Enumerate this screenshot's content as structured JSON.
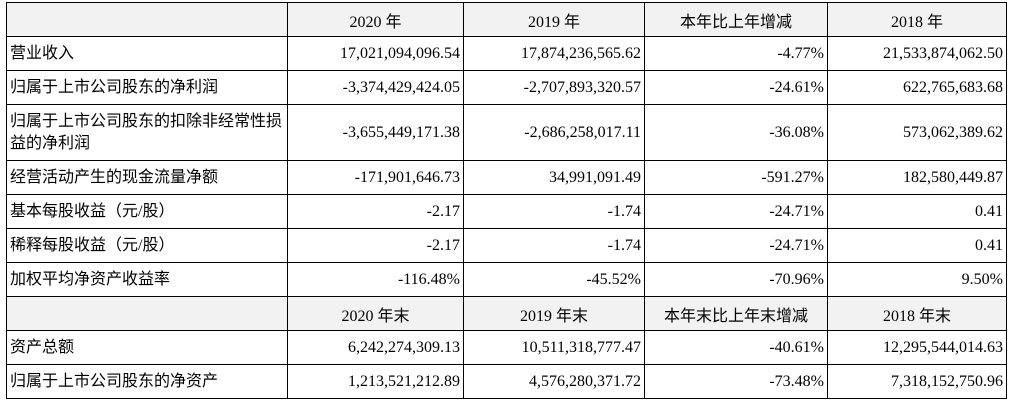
{
  "table": {
    "header": [
      "",
      "2020 年",
      "2019 年",
      "本年比上年增减",
      "2018 年"
    ],
    "rows": [
      [
        "营业收入",
        "17,021,094,096.54",
        "17,874,236,565.62",
        "-4.77%",
        "21,533,874,062.50"
      ],
      [
        "归属于上市公司股东的净利润",
        "-3,374,429,424.05",
        "-2,707,893,320.57",
        "-24.61%",
        "622,765,683.68"
      ],
      [
        "归属于上市公司股东的扣除非经常性损益的净利润",
        "-3,655,449,171.38",
        "-2,686,258,017.11",
        "-36.08%",
        "573,062,389.62"
      ],
      [
        "经营活动产生的现金流量净额",
        "-171,901,646.73",
        "34,991,091.49",
        "-591.27%",
        "182,580,449.87"
      ],
      [
        "基本每股收益（元/股）",
        "-2.17",
        "-1.74",
        "-24.71%",
        "0.41"
      ],
      [
        "稀释每股收益（元/股）",
        "-2.17",
        "-1.74",
        "-24.71%",
        "0.41"
      ],
      [
        "加权平均净资产收益率",
        "-116.48%",
        "-45.52%",
        "-70.96%",
        "9.50%"
      ]
    ],
    "header2": [
      "",
      "2020 年末",
      "2019 年末",
      "本年末比上年末增减",
      "2018 年末"
    ],
    "rows2": [
      [
        "资产总额",
        "6,242,274,309.13",
        "10,511,318,777.47",
        "-40.61%",
        "12,295,544,014.63"
      ],
      [
        "归属于上市公司股东的净资产",
        "1,213,521,212.89",
        "4,576,280,371.72",
        "-73.48%",
        "7,318,152,750.96"
      ]
    ]
  }
}
